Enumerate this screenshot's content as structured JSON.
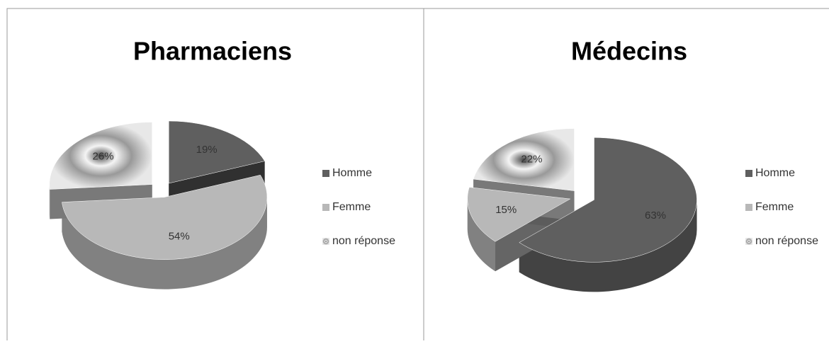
{
  "chart_data": [
    {
      "type": "pie",
      "title": "Pharmaciens",
      "categories": [
        "Homme",
        "Femme",
        "non réponse"
      ],
      "values": [
        19,
        54,
        26
      ],
      "value_labels": [
        "19%",
        "54%",
        "26%"
      ],
      "colors": [
        "#5f5f5f",
        "#b8b8b8",
        "#dcdcdc"
      ]
    },
    {
      "type": "pie",
      "title": "Médecins",
      "categories": [
        "Homme",
        "Femme",
        "non réponse"
      ],
      "values": [
        63,
        15,
        22
      ],
      "value_labels": [
        "63%",
        "15%",
        "22%"
      ],
      "colors": [
        "#5f5f5f",
        "#b8b8b8",
        "#dcdcdc"
      ]
    }
  ]
}
